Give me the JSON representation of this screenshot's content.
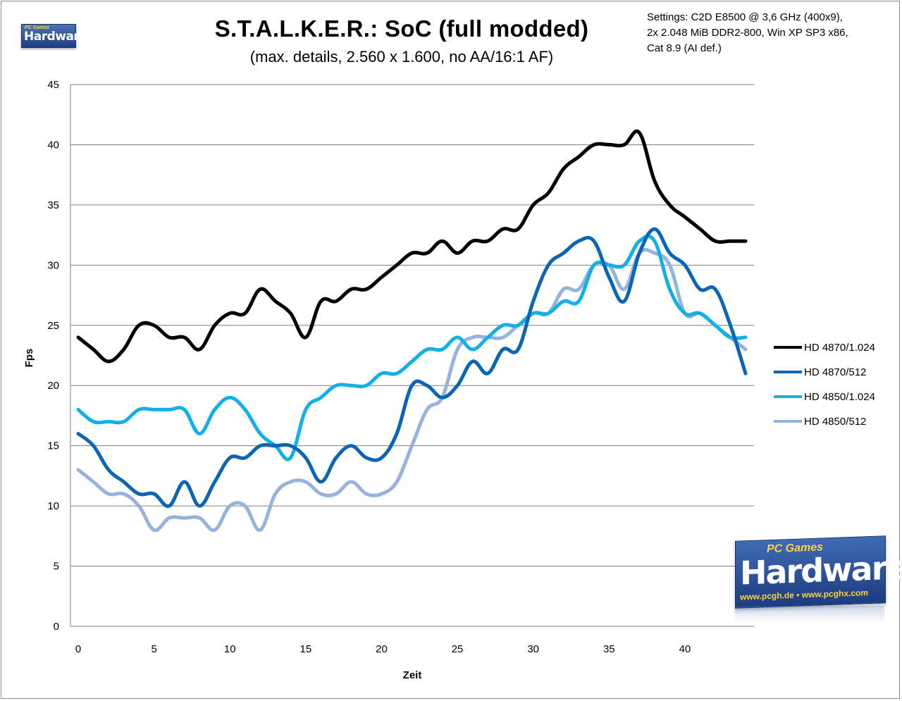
{
  "chart_data": {
    "type": "line",
    "title": "S.T.A.L.K.E.R.: SoC  (full modded)",
    "subtitle": "(max. details, 2.560 x 1.600, no AA/16:1 AF)",
    "settings_lines": [
      "Settings: C2D E8500  @ 3,6 GHz (400x9),",
      "2x 2.048 MiB DDR2-800, Win XP SP3 x86,",
      "Cat 8.9 (AI def.)"
    ],
    "xlabel": "Zeit",
    "ylabel": "Fps",
    "xlim": [
      0,
      44
    ],
    "ylim": [
      0,
      45
    ],
    "x_ticks": [
      0,
      5,
      10,
      15,
      20,
      25,
      30,
      35,
      40
    ],
    "y_ticks": [
      0,
      5,
      10,
      15,
      20,
      25,
      30,
      35,
      40,
      45
    ],
    "grid": "horizontal",
    "legend_position": "right",
    "x": [
      0,
      1,
      2,
      3,
      4,
      5,
      6,
      7,
      8,
      9,
      10,
      11,
      12,
      13,
      14,
      15,
      16,
      17,
      18,
      19,
      20,
      21,
      22,
      23,
      24,
      25,
      26,
      27,
      28,
      29,
      30,
      31,
      32,
      33,
      34,
      35,
      36,
      37,
      38,
      39,
      40,
      41,
      42,
      43,
      44
    ],
    "series": [
      {
        "name": "HD 4870/1.024",
        "color": "#000000",
        "values": [
          24,
          23,
          22,
          23,
          25,
          25,
          24,
          24,
          23,
          25,
          26,
          26,
          28,
          27,
          26,
          24,
          27,
          27,
          28,
          28,
          29,
          30,
          31,
          31,
          32,
          31,
          32,
          32,
          33,
          33,
          35,
          36,
          38,
          39,
          40,
          40,
          40,
          41,
          37,
          35,
          34,
          33,
          32,
          32,
          32
        ]
      },
      {
        "name": "HD 4870/512",
        "color": "#0a66b5",
        "values": [
          16,
          15,
          13,
          12,
          11,
          11,
          10,
          12,
          10,
          12,
          14,
          14,
          15,
          15,
          15,
          14,
          12,
          14,
          15,
          14,
          14,
          16,
          20,
          20,
          19,
          20,
          22,
          21,
          23,
          23,
          27,
          30,
          31,
          32,
          32,
          29,
          27,
          31,
          33,
          31,
          30,
          28,
          28,
          25,
          21
        ]
      },
      {
        "name": "HD 4850/1.024",
        "color": "#12b0e8",
        "values": [
          18,
          17,
          17,
          17,
          18,
          18,
          18,
          18,
          16,
          18,
          19,
          18,
          16,
          15,
          14,
          18,
          19,
          20,
          20,
          20,
          21,
          21,
          22,
          23,
          23,
          24,
          23,
          24,
          25,
          25,
          26,
          26,
          27,
          27,
          30,
          30,
          30,
          32,
          32,
          28,
          26,
          26,
          25,
          24,
          24
        ]
      },
      {
        "name": "HD 4850/512",
        "color": "#96b3db",
        "values": [
          13,
          12,
          11,
          11,
          10,
          8,
          9,
          9,
          9,
          8,
          10,
          10,
          8,
          11,
          12,
          12,
          11,
          11,
          12,
          11,
          11,
          12,
          15,
          18,
          19,
          23,
          24,
          24,
          24,
          25,
          26,
          26,
          28,
          28,
          30,
          30,
          28,
          31,
          31,
          30,
          26,
          26,
          25,
          24,
          23
        ]
      }
    ]
  },
  "logos": {
    "small": {
      "top_text": "PC Games",
      "main_text": "Hardware"
    },
    "big": {
      "top_text": "PC Games",
      "main_text": "Hardware",
      "url_text": "www.pcgh.de • www.pcghx.com"
    }
  }
}
